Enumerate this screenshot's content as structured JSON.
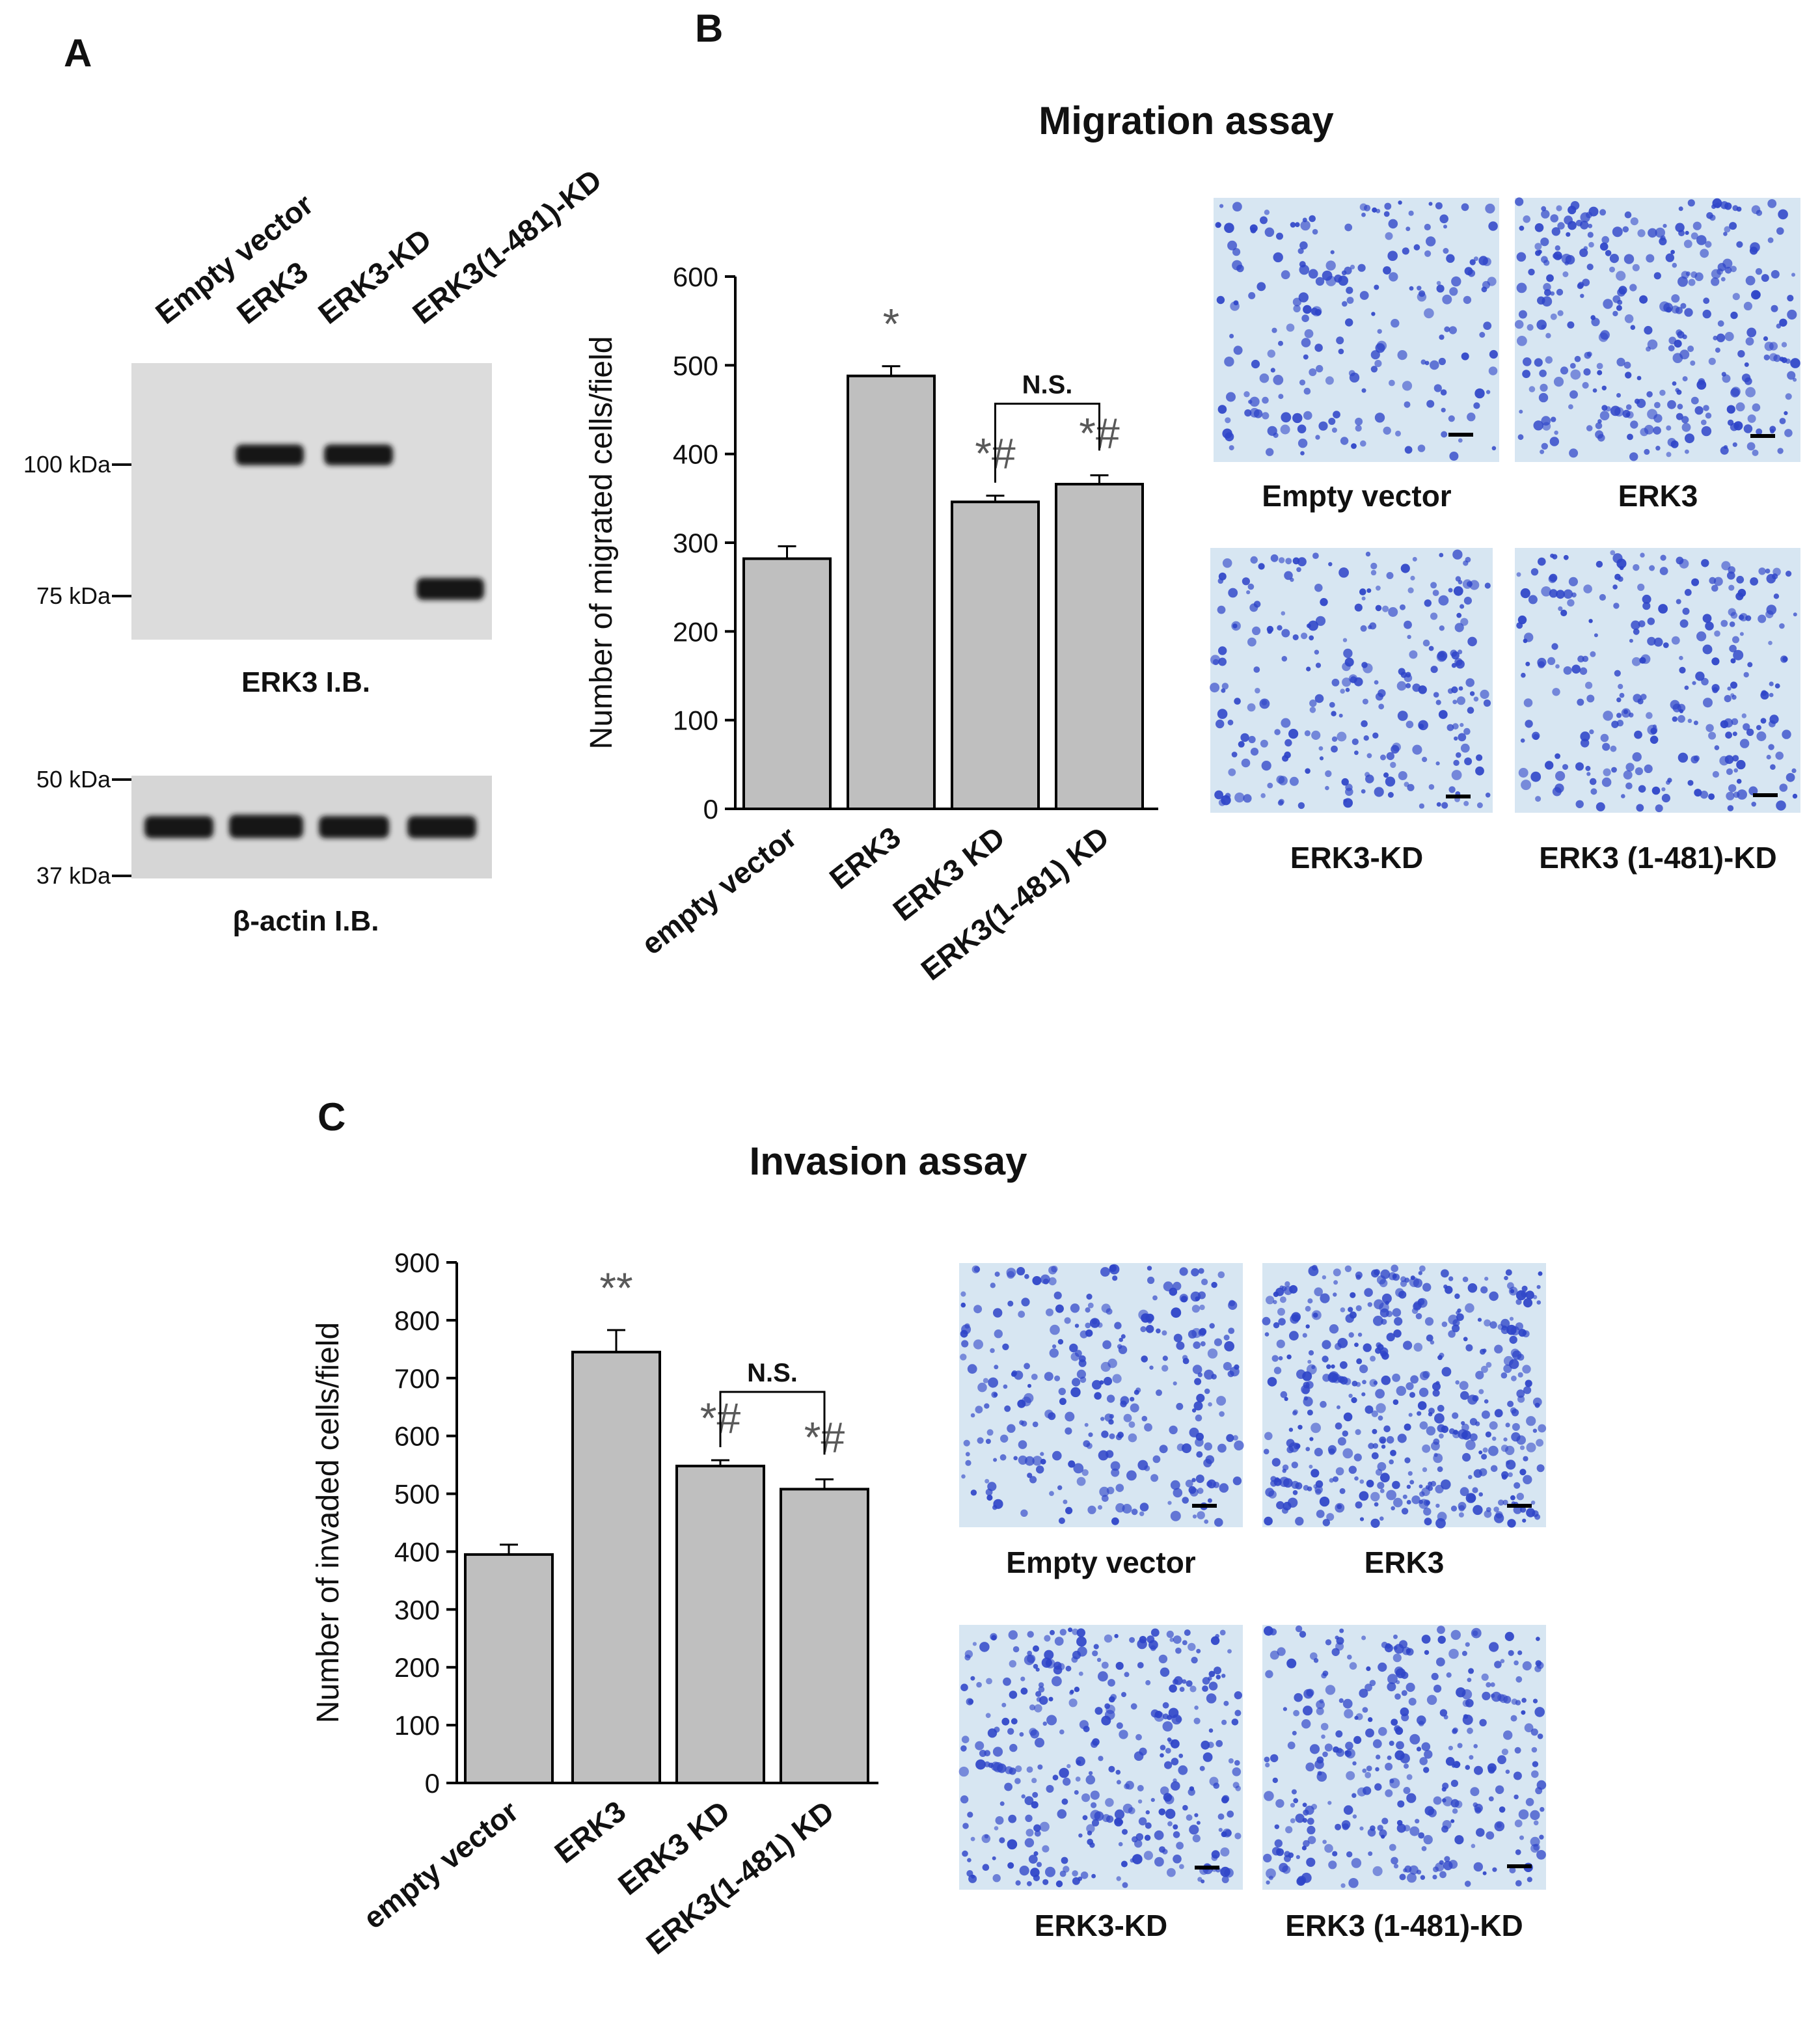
{
  "panel_a": {
    "letter": "A",
    "lane_labels": [
      "Empty vector",
      "ERK3",
      "ERK3-KD",
      "ERK3(1-481)-KD"
    ],
    "markers_top": [
      "100 kDa",
      "75 kDa"
    ],
    "markers_bottom": [
      "50 kDa",
      "37 kDa"
    ],
    "blot_top_label": "ERK3 I.B.",
    "blot_bottom_label": "β-actin I.B."
  },
  "panel_b": {
    "letter": "B",
    "title": "Migration assay",
    "image_captions": [
      "Empty vector",
      "ERK3",
      "ERK3-KD",
      "ERK3 (1-481)-KD"
    ],
    "ns_label": "N.S."
  },
  "panel_c": {
    "letter": "C",
    "title": "Invasion assay",
    "image_captions": [
      "Empty vector",
      "ERK3",
      "ERK3-KD",
      "ERK3 (1-481)-KD"
    ],
    "ns_label": "N.S."
  },
  "colors": {
    "bar_fill": "#bfbfbf",
    "bar_stroke": "#000000",
    "annotation": "#595959",
    "micrograph_bg": "#d7e6f2",
    "cell_stain": "#2e44c8"
  },
  "chart_data": [
    {
      "type": "bar",
      "title": "Migration assay",
      "xlabel": "",
      "ylabel": "Number of migrated cells/field",
      "categories": [
        "empty vector",
        "ERK3",
        "ERK3 KD",
        "ERK3(1-481) KD"
      ],
      "values": [
        282,
        488,
        346,
        366
      ],
      "errors": [
        14,
        11,
        7,
        10
      ],
      "annotations": [
        "",
        "*",
        "*#",
        "*#"
      ],
      "ylim": [
        0,
        600
      ],
      "yticks": [
        0,
        100,
        200,
        300,
        400,
        500,
        600
      ],
      "grid": false,
      "legend": "none"
    },
    {
      "type": "bar",
      "title": "Invasion assay",
      "xlabel": "",
      "ylabel": "Number of invaded cells/field",
      "categories": [
        "empty vector",
        "ERK3",
        "ERK3 KD",
        "ERK3(1-481) KD"
      ],
      "values": [
        395,
        745,
        548,
        508
      ],
      "errors": [
        17,
        38,
        10,
        17
      ],
      "annotations": [
        "",
        "**",
        "*#",
        "*#"
      ],
      "ylim": [
        0,
        900
      ],
      "yticks": [
        0,
        100,
        200,
        300,
        400,
        500,
        600,
        700,
        800,
        900
      ],
      "grid": false,
      "legend": "none"
    }
  ]
}
